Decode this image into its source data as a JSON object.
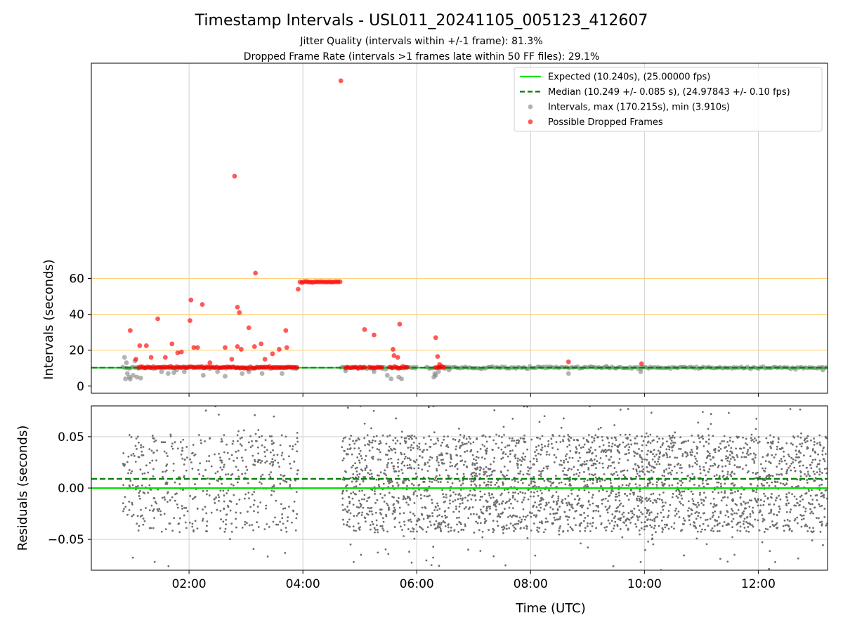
{
  "title": "Timestamp Intervals - USL011_20241105_005123_412607",
  "subtitle_1": "Jitter Quality (intervals within +/-1 frame): 81.3%",
  "subtitle_2": "Dropped Frame Rate (intervals >1 frames late within 50 FF files): 29.1%",
  "colors": {
    "expected": "#00e000",
    "median": "#007f00",
    "intervals": "#808080",
    "dropped": "#ff0000",
    "gridline_orange": "#ffd27a",
    "grid": "#d0d0d0"
  },
  "chart_data": [
    {
      "type": "scatter",
      "ylabel": "Intervals (seconds)",
      "xlim": [
        "00:17",
        "13:13"
      ],
      "ylim": [
        -4,
        180
      ],
      "yticks": [
        "0",
        "20",
        "40",
        "60"
      ],
      "ytick_values": [
        0,
        20,
        40,
        60
      ],
      "xticks": [
        "02:00",
        "04:00",
        "06:00",
        "08:00",
        "10:00",
        "12:00"
      ],
      "horizontal_orange_lines": [
        20,
        40,
        60
      ],
      "legend_position": "upper right",
      "legend": {
        "expected": "Expected (10.240s), (25.00000 fps)",
        "median": "Median (10.249 +/- 0.085 s), (24.97843 +/- 0.10 fps)",
        "intervals": "Intervals, max (170.215s), min (3.910s)",
        "dropped": "Possible Dropped Frames"
      },
      "expected_value": 10.24,
      "median_value": 10.249,
      "normal_interval_bands": [
        {
          "start": "00:50",
          "end": "03:55",
          "value": 10.25
        },
        {
          "start": "04:40",
          "end": "06:00",
          "value": 10.25
        },
        {
          "start": "06:10",
          "end": "13:13",
          "value": 10.25
        }
      ],
      "gray_outliers": [
        {
          "x": "00:52",
          "y": 16
        },
        {
          "x": "00:53",
          "y": 4
        },
        {
          "x": "00:54",
          "y": 13
        },
        {
          "x": "00:55",
          "y": 7
        },
        {
          "x": "00:57",
          "y": 5
        },
        {
          "x": "00:58",
          "y": 3.9
        },
        {
          "x": "01:01",
          "y": 6
        },
        {
          "x": "01:03",
          "y": 14
        },
        {
          "x": "01:05",
          "y": 5
        },
        {
          "x": "01:09",
          "y": 4.5
        },
        {
          "x": "01:31",
          "y": 8
        },
        {
          "x": "01:38",
          "y": 7
        },
        {
          "x": "01:44",
          "y": 7.5
        },
        {
          "x": "01:47",
          "y": 9
        },
        {
          "x": "01:55",
          "y": 8
        },
        {
          "x": "02:15",
          "y": 6
        },
        {
          "x": "02:30",
          "y": 8
        },
        {
          "x": "02:38",
          "y": 5.5
        },
        {
          "x": "02:56",
          "y": 7
        },
        {
          "x": "03:03",
          "y": 8
        },
        {
          "x": "03:17",
          "y": 7
        },
        {
          "x": "03:38",
          "y": 7
        },
        {
          "x": "04:45",
          "y": 8.5
        },
        {
          "x": "05:15",
          "y": 8
        },
        {
          "x": "05:29",
          "y": 6
        },
        {
          "x": "05:33",
          "y": 4
        },
        {
          "x": "05:41",
          "y": 5
        },
        {
          "x": "05:44",
          "y": 4
        },
        {
          "x": "06:18",
          "y": 5
        },
        {
          "x": "06:19",
          "y": 7
        },
        {
          "x": "06:20",
          "y": 6
        },
        {
          "x": "06:23",
          "y": 8
        },
        {
          "x": "06:34",
          "y": 9
        },
        {
          "x": "08:40",
          "y": 7
        },
        {
          "x": "09:20",
          "y": 11
        },
        {
          "x": "09:56",
          "y": 8
        },
        {
          "x": "13:08",
          "y": 9
        }
      ],
      "dropped_frames_bands": [
        {
          "start": "01:07",
          "end": "03:54",
          "value": 10.4
        },
        {
          "start": "04:45",
          "end": "05:05",
          "value": 10.4
        },
        {
          "start": "05:10",
          "end": "05:25",
          "value": 10.4
        },
        {
          "start": "05:32",
          "end": "05:50",
          "value": 10.4
        },
        {
          "start": "06:20",
          "end": "06:31",
          "value": 10.4
        }
      ],
      "dropped_plateau": {
        "start": "03:57",
        "end": "04:40",
        "value": 58
      },
      "dropped_frames": [
        {
          "x": "04:40",
          "y": 170.2
        },
        {
          "x": "02:48",
          "y": 117
        },
        {
          "x": "03:10",
          "y": 63
        },
        {
          "x": "03:55",
          "y": 54
        },
        {
          "x": "00:58",
          "y": 31
        },
        {
          "x": "01:04",
          "y": 15
        },
        {
          "x": "01:08",
          "y": 22.5
        },
        {
          "x": "01:15",
          "y": 22.5
        },
        {
          "x": "01:20",
          "y": 16
        },
        {
          "x": "01:27",
          "y": 37.5
        },
        {
          "x": "01:35",
          "y": 16
        },
        {
          "x": "01:42",
          "y": 23.5
        },
        {
          "x": "01:48",
          "y": 18.5
        },
        {
          "x": "01:52",
          "y": 19
        },
        {
          "x": "02:02",
          "y": 48
        },
        {
          "x": "02:01",
          "y": 36.5
        },
        {
          "x": "02:05",
          "y": 21.5
        },
        {
          "x": "02:09",
          "y": 21.5
        },
        {
          "x": "02:14",
          "y": 45.5
        },
        {
          "x": "02:22",
          "y": 13
        },
        {
          "x": "02:38",
          "y": 21.5
        },
        {
          "x": "02:45",
          "y": 15
        },
        {
          "x": "02:51",
          "y": 44
        },
        {
          "x": "02:53",
          "y": 41
        },
        {
          "x": "02:51",
          "y": 22
        },
        {
          "x": "02:55",
          "y": 20.5
        },
        {
          "x": "03:03",
          "y": 32.5
        },
        {
          "x": "03:09",
          "y": 22
        },
        {
          "x": "03:16",
          "y": 23.5
        },
        {
          "x": "03:20",
          "y": 15
        },
        {
          "x": "03:28",
          "y": 18
        },
        {
          "x": "03:35",
          "y": 20.5
        },
        {
          "x": "03:42",
          "y": 31
        },
        {
          "x": "03:43",
          "y": 21.5
        },
        {
          "x": "05:05",
          "y": 31.5
        },
        {
          "x": "05:15",
          "y": 28.5
        },
        {
          "x": "05:35",
          "y": 20.5
        },
        {
          "x": "05:36",
          "y": 17
        },
        {
          "x": "05:40",
          "y": 16
        },
        {
          "x": "05:42",
          "y": 34.5
        },
        {
          "x": "06:20",
          "y": 27
        },
        {
          "x": "06:22",
          "y": 16.5
        },
        {
          "x": "06:24",
          "y": 12
        },
        {
          "x": "08:40",
          "y": 13.5
        },
        {
          "x": "09:57",
          "y": 12.5
        }
      ]
    },
    {
      "type": "scatter",
      "xlabel": "Time (UTC)",
      "ylabel": "Residuals (seconds)",
      "xlim": [
        "00:17",
        "13:13"
      ],
      "ylim": [
        -0.08,
        0.08
      ],
      "yticks": [
        "0.05",
        "0.00",
        "−0.05"
      ],
      "ytick_values": [
        0.05,
        0.0,
        -0.05
      ],
      "xticks": [
        "02:00",
        "04:00",
        "06:00",
        "08:00",
        "10:00",
        "12:00"
      ],
      "expected_residual": 0.0,
      "median_residual": 0.009,
      "residual_segments": [
        {
          "start": "00:50",
          "end": "03:55",
          "count": 520
        },
        {
          "start": "04:41",
          "end": "13:13",
          "count": 2800
        }
      ],
      "residual_spread": 0.05
    }
  ]
}
